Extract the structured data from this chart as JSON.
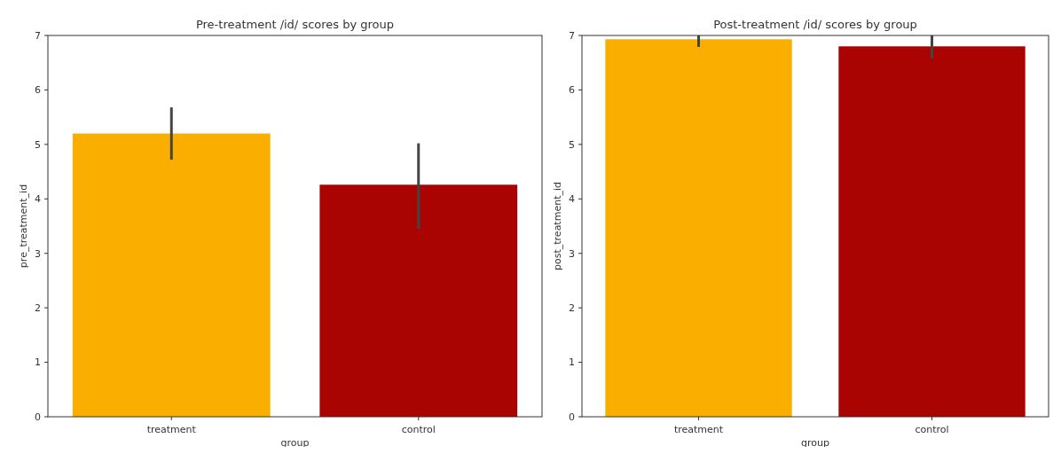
{
  "chart_data": [
    {
      "type": "bar",
      "title": "Pre-treatment /id/ scores by group",
      "xlabel": "group",
      "ylabel": "pre_treatment_id",
      "categories": [
        "treatment",
        "control"
      ],
      "values": [
        5.2,
        4.26
      ],
      "colors": [
        "#f9ae00",
        "#a90302"
      ],
      "errors": [
        [
          4.72,
          5.68
        ],
        [
          3.45,
          5.02
        ]
      ],
      "ylim": [
        0,
        7
      ],
      "yticks": [
        0,
        1,
        2,
        3,
        4,
        5,
        6,
        7
      ]
    },
    {
      "type": "bar",
      "title": "Post-treatment /id/ scores by group",
      "xlabel": "group",
      "ylabel": "post_treatment_id",
      "categories": [
        "treatment",
        "control"
      ],
      "values": [
        6.93,
        6.8
      ],
      "colors": [
        "#f9ae00",
        "#a90302"
      ],
      "errors": [
        [
          6.79,
          7
        ],
        [
          6.58,
          7
        ]
      ],
      "ylim": [
        0,
        7
      ],
      "yticks": [
        0,
        1,
        2,
        3,
        4,
        5,
        6,
        7
      ]
    }
  ]
}
